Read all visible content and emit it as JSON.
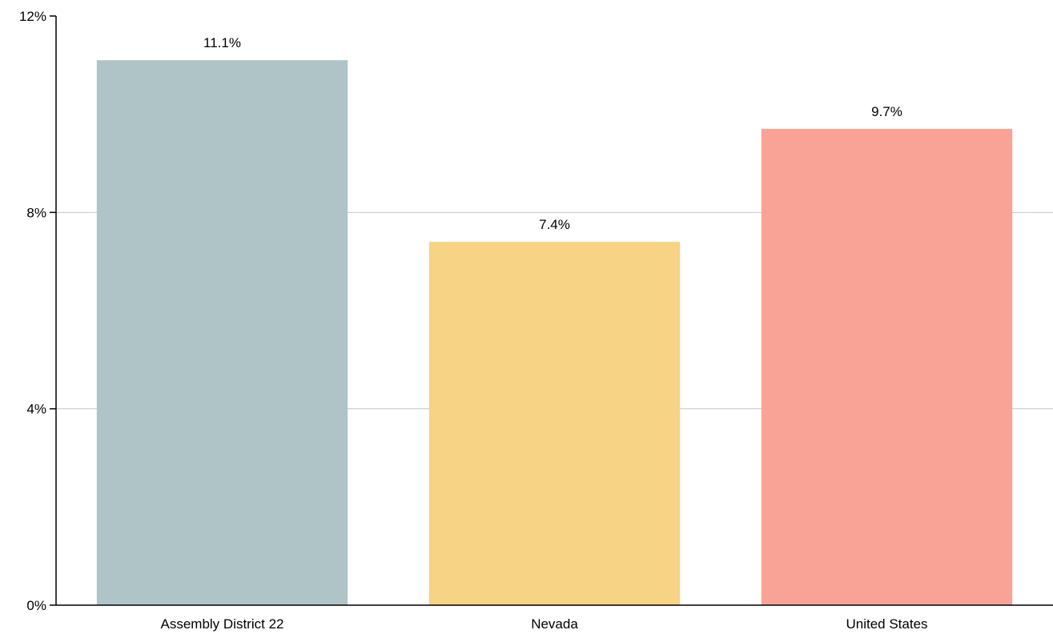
{
  "chart_data": {
    "type": "bar",
    "categories": [
      "Assembly District 22",
      "Nevada",
      "United States"
    ],
    "values": [
      11.1,
      7.4,
      9.7
    ],
    "value_labels": [
      "11.1%",
      "7.4%",
      "9.7%"
    ],
    "colors": [
      "#aec4c6",
      "#f7d386",
      "#f8a396"
    ],
    "title": "",
    "xlabel": "",
    "ylabel": "",
    "ylim": [
      0,
      12
    ],
    "yticks": [
      0,
      4,
      8,
      12
    ],
    "ytick_labels": [
      "0%",
      "4%",
      "8%",
      "12%"
    ],
    "grid": true,
    "legend": "none"
  }
}
